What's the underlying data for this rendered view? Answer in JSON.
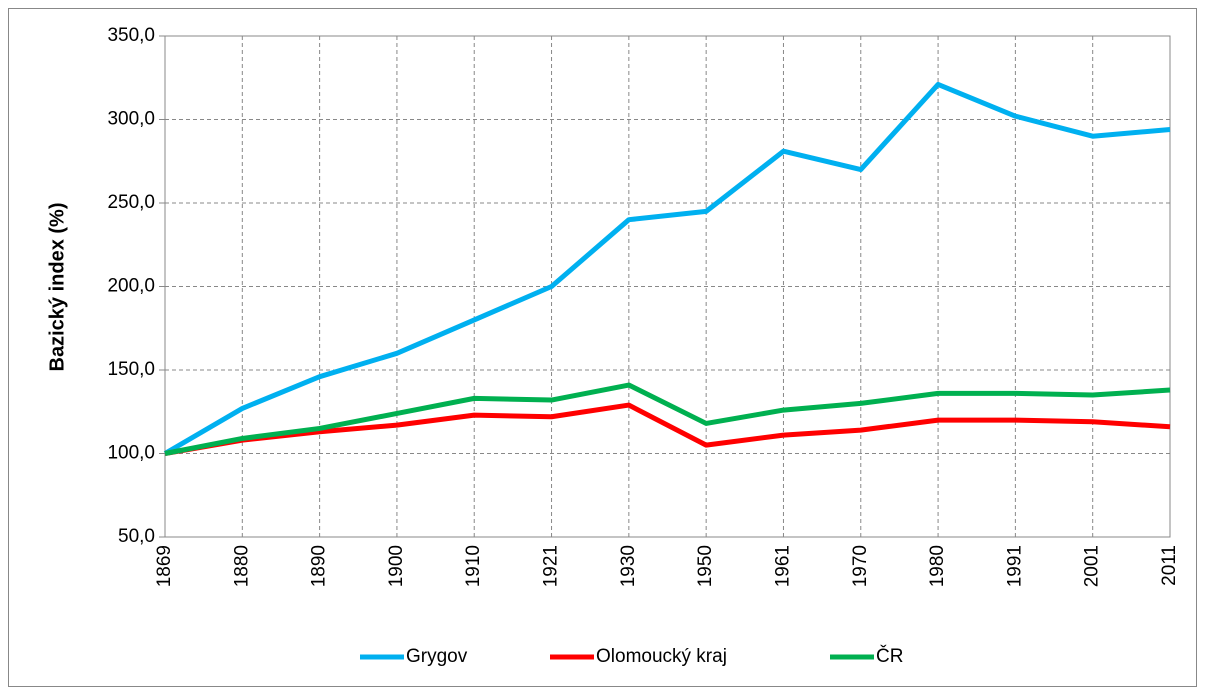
{
  "chart_data": {
    "type": "line",
    "y_label": "Bazický index (%)",
    "categories": [
      "1869",
      "1880",
      "1890",
      "1900",
      "1910",
      "1921",
      "1930",
      "1950",
      "1961",
      "1970",
      "1980",
      "1991",
      "2001",
      "2011"
    ],
    "series": [
      {
        "name": "Grygov",
        "color": "#00b0f0",
        "values": [
          100,
          127,
          146,
          160,
          180,
          200,
          240,
          245,
          281,
          270,
          321,
          302,
          290,
          294
        ]
      },
      {
        "name": "Olomoucký kraj",
        "color": "#ff0000",
        "values": [
          100,
          108,
          113,
          117,
          123,
          122,
          129,
          105,
          111,
          114,
          120,
          120,
          119,
          116
        ]
      },
      {
        "name": "ČR",
        "color": "#00b050",
        "values": [
          100,
          109,
          115,
          124,
          133,
          132,
          141,
          118,
          126,
          130,
          136,
          136,
          135,
          138
        ]
      }
    ],
    "ylim": [
      50,
      350
    ],
    "yticks": [
      {
        "value": 50,
        "label": "50,0"
      },
      {
        "value": 100,
        "label": "100,0"
      },
      {
        "value": 150,
        "label": "150,0"
      },
      {
        "value": 200,
        "label": "200,0"
      },
      {
        "value": 250,
        "label": "250,0"
      },
      {
        "value": 300,
        "label": "300,0"
      },
      {
        "value": 350,
        "label": "350,0"
      }
    ],
    "grid": true,
    "legend": "bottom"
  }
}
